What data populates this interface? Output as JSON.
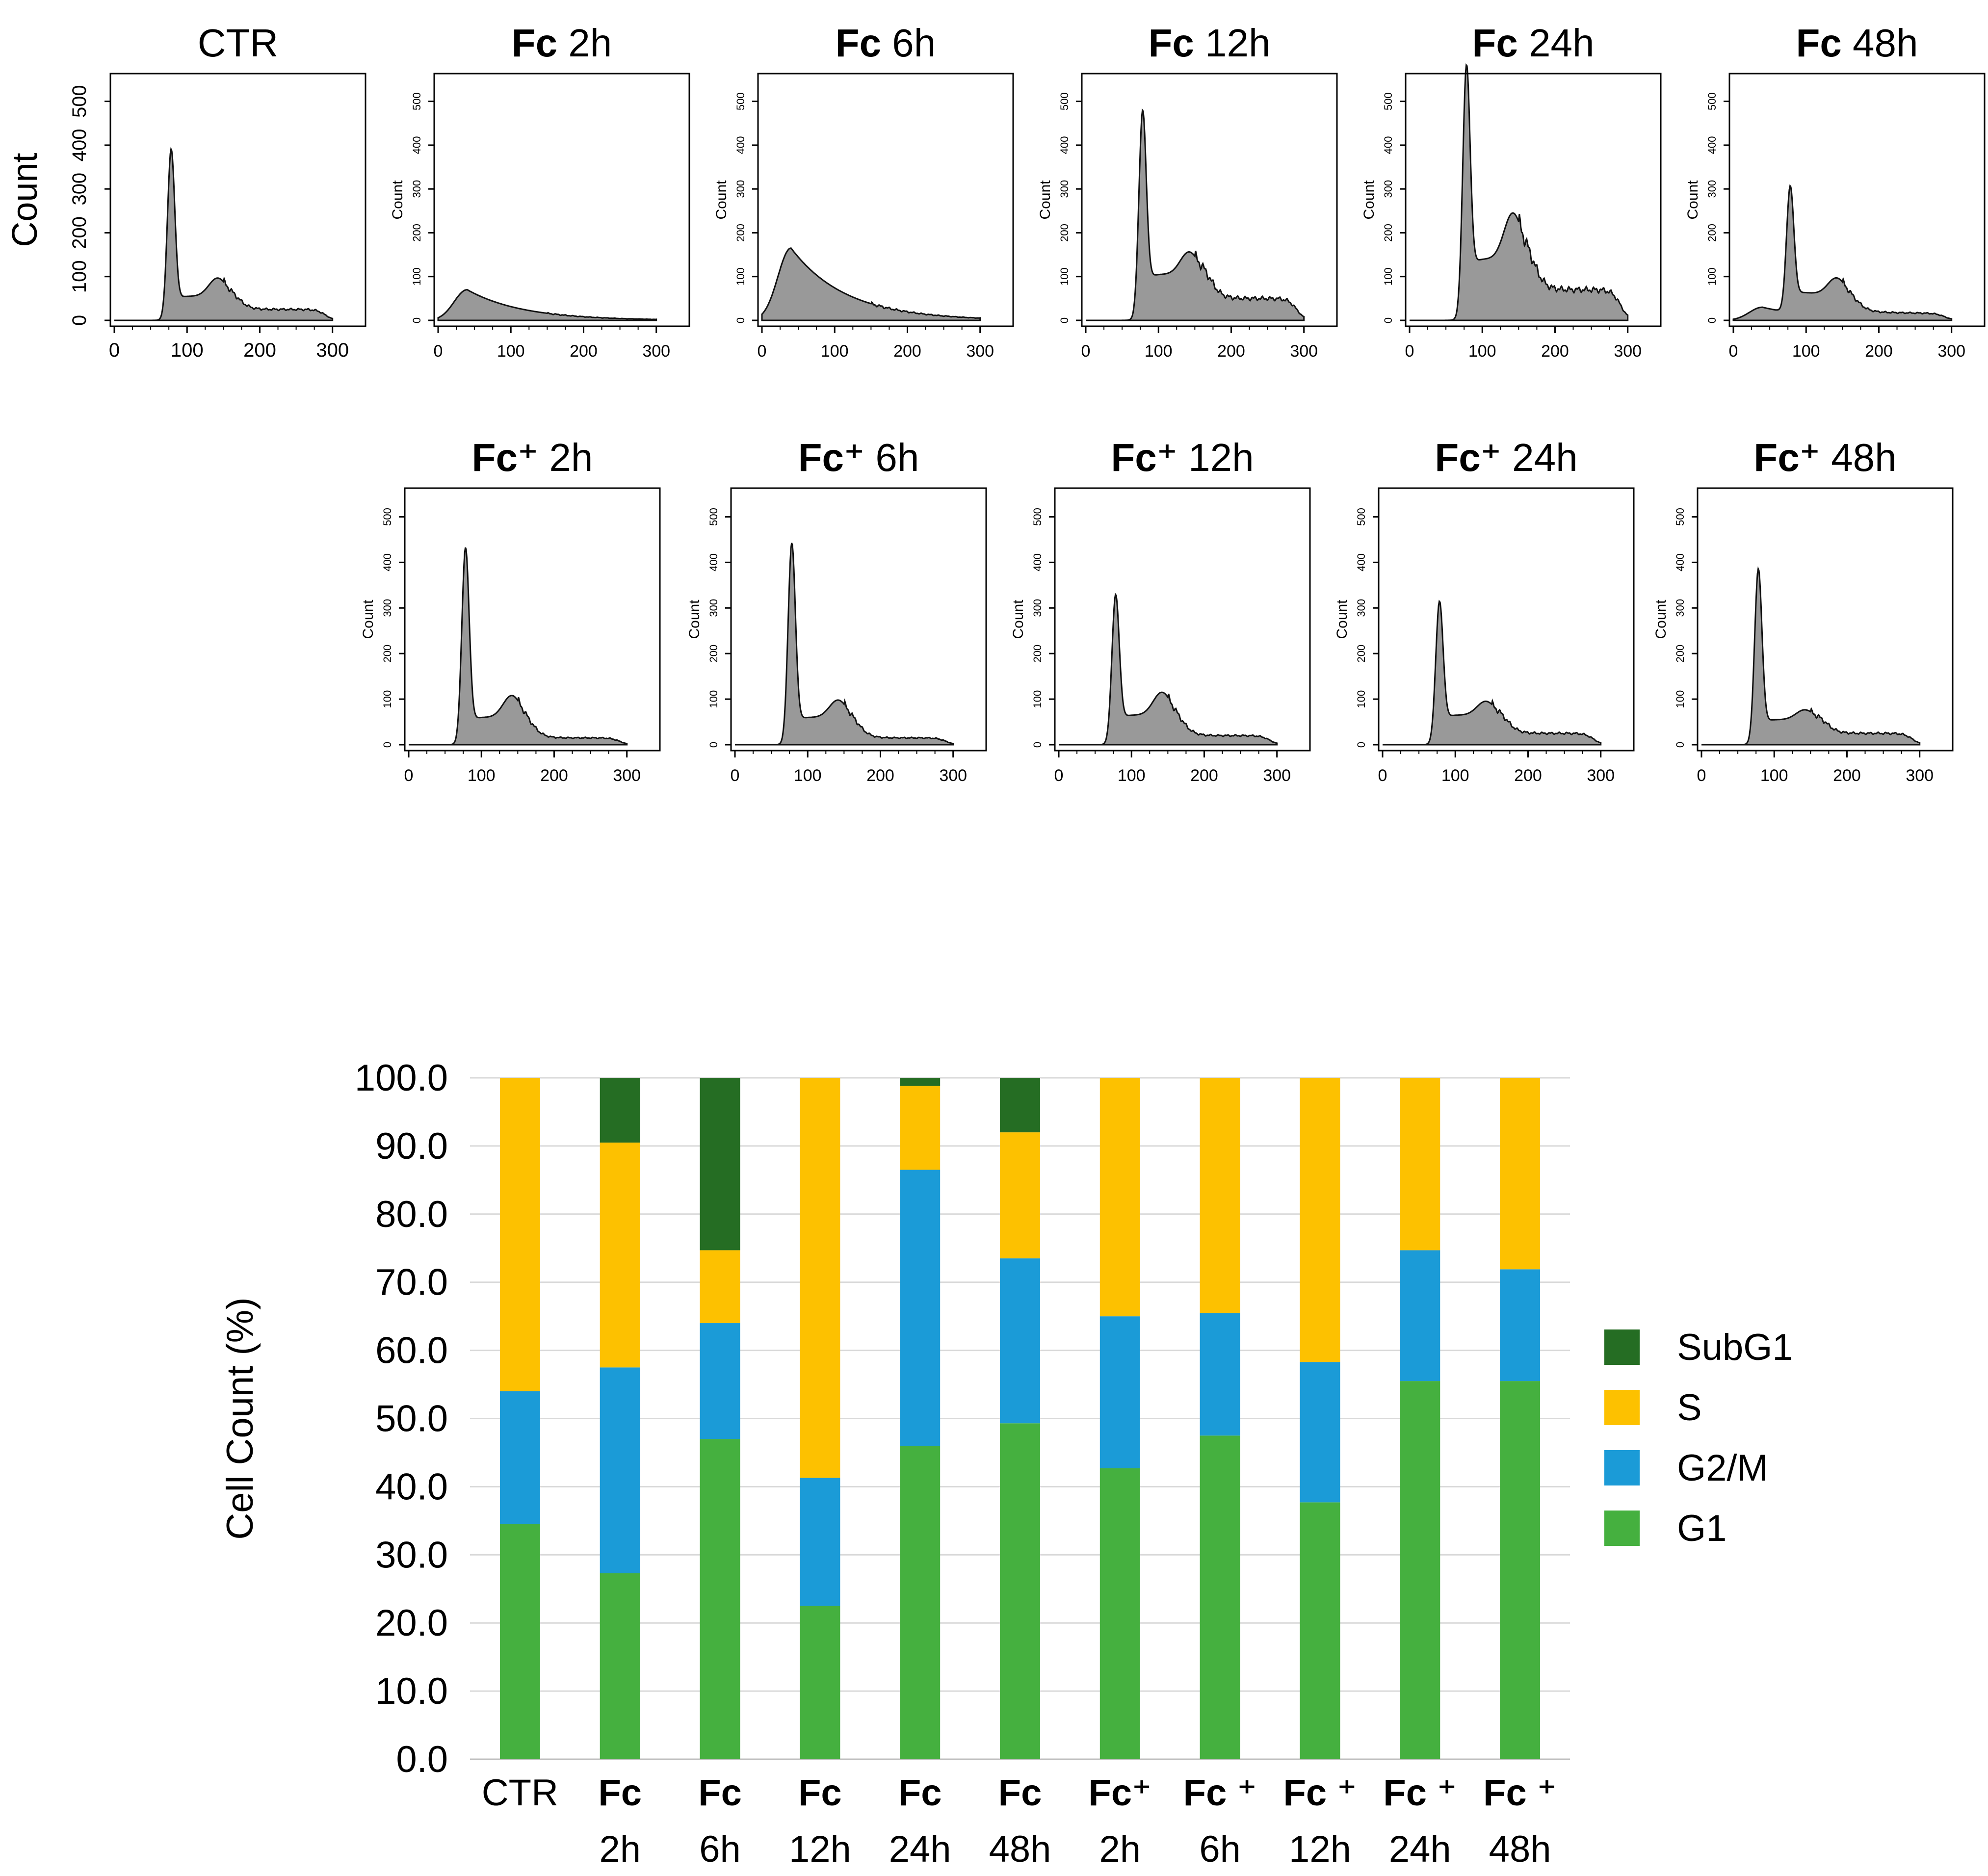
{
  "chart_data": [
    {
      "type": "area",
      "panel": "flow-cytometry-histograms",
      "y_label": "Count",
      "x_ticks": [
        "0",
        "100",
        "200",
        "300"
      ],
      "y_ticks": [
        "0",
        "100",
        "200",
        "300",
        "400",
        "500"
      ],
      "xlim": [
        0,
        340
      ],
      "ylim": [
        0,
        550
      ],
      "fill_color": "#999999",
      "rows": [
        [
          {
            "title_bold": "",
            "title_rest": "CTR",
            "peak1": 370,
            "base": 55,
            "peak2": 75,
            "sub_level": 0,
            "tail": 25
          },
          {
            "title_bold": "Fc",
            "title_rest": " 2h",
            "peak1": 0,
            "base": 70,
            "peak2": 0,
            "sub_level": 70,
            "tail": 10
          },
          {
            "title_bold": "Fc",
            "title_rest": " 6h",
            "peak1": 0,
            "base": 165,
            "peak2": 0,
            "sub_level": 165,
            "tail": 20
          },
          {
            "title_bold": "Fc",
            "title_rest": " 12h",
            "peak1": 440,
            "base": 105,
            "peak2": 115,
            "sub_level": 0,
            "tail": 50
          },
          {
            "title_bold": "Fc",
            "title_rest": " 24h",
            "peak1": 530,
            "base": 140,
            "peak2": 190,
            "sub_level": 0,
            "tail": 70
          },
          {
            "title_bold": "Fc",
            "title_rest": " 48h",
            "peak1": 270,
            "base": 50,
            "peak2": 70,
            "sub_level": 30,
            "tail": 15
          }
        ],
        [
          null,
          {
            "title_bold": "Fc⁺",
            "title_rest": " 2h",
            "peak1": 410,
            "base": 60,
            "peak2": 85,
            "sub_level": 0,
            "tail": 15
          },
          {
            "title_bold": "Fc⁺",
            "title_rest": " 6h",
            "peak1": 420,
            "base": 60,
            "peak2": 75,
            "sub_level": 0,
            "tail": 15
          },
          {
            "title_bold": "Fc⁺",
            "title_rest": " 12h",
            "peak1": 305,
            "base": 65,
            "peak2": 90,
            "sub_level": 0,
            "tail": 20
          },
          {
            "title_bold": "Fc⁺",
            "title_rest": " 24h",
            "peak1": 290,
            "base": 65,
            "peak2": 70,
            "sub_level": 0,
            "tail": 25
          },
          {
            "title_bold": "Fc⁺",
            "title_rest": " 48h",
            "peak1": 365,
            "base": 55,
            "peak2": 55,
            "sub_level": 0,
            "tail": 25
          }
        ]
      ]
    },
    {
      "type": "bar",
      "stacked": true,
      "ylabel": "Cell Count (%)",
      "ylim": [
        0,
        100
      ],
      "y_ticks": [
        "0.0",
        "10.0",
        "20.0",
        "30.0",
        "40.0",
        "50.0",
        "60.0",
        "70.0",
        "80.0",
        "90.0",
        "100.0"
      ],
      "categories": [
        {
          "bold": "",
          "line1": "CTR",
          "line2": ""
        },
        {
          "bold": "Fc",
          "line1": "",
          "line2": "2h"
        },
        {
          "bold": "Fc",
          "line1": "",
          "line2": "6h"
        },
        {
          "bold": "Fc",
          "line1": "",
          "line2": "12h"
        },
        {
          "bold": "Fc",
          "line1": "",
          "line2": "24h"
        },
        {
          "bold": "Fc",
          "line1": "",
          "line2": "48h"
        },
        {
          "bold": "Fc⁺",
          "line1": "",
          "line2": "2h"
        },
        {
          "bold": "Fc ⁺",
          "line1": "",
          "line2": "6h"
        },
        {
          "bold": "Fc ⁺",
          "line1": "",
          "line2": "12h"
        },
        {
          "bold": "Fc ⁺",
          "line1": "",
          "line2": "24h"
        },
        {
          "bold": "Fc ⁺",
          "line1": "",
          "line2": "48h"
        }
      ],
      "series": [
        {
          "name": "G1",
          "color": "#45b03f",
          "values": [
            34.5,
            27.3,
            47.0,
            22.5,
            46.0,
            49.3,
            42.7,
            47.5,
            37.7,
            55.5,
            55.5
          ]
        },
        {
          "name": "G2/M",
          "color": "#1b9bd7",
          "values": [
            19.5,
            30.2,
            17.0,
            18.8,
            40.5,
            24.2,
            22.3,
            18.0,
            20.6,
            19.2,
            16.4
          ]
        },
        {
          "name": "S",
          "color": "#fdc100",
          "values": [
            46.0,
            33.0,
            10.7,
            58.7,
            12.3,
            18.5,
            35.0,
            34.5,
            41.7,
            25.3,
            28.1
          ]
        },
        {
          "name": "SubG1",
          "color": "#256d23",
          "values": [
            0.0,
            9.5,
            25.3,
            0.0,
            1.2,
            8.0,
            0.0,
            0.0,
            0.0,
            0.0,
            0.0
          ]
        }
      ],
      "legend_order": [
        "SubG1",
        "S",
        "G2/M",
        "G1"
      ],
      "legend_position": "right",
      "grid": true
    }
  ]
}
